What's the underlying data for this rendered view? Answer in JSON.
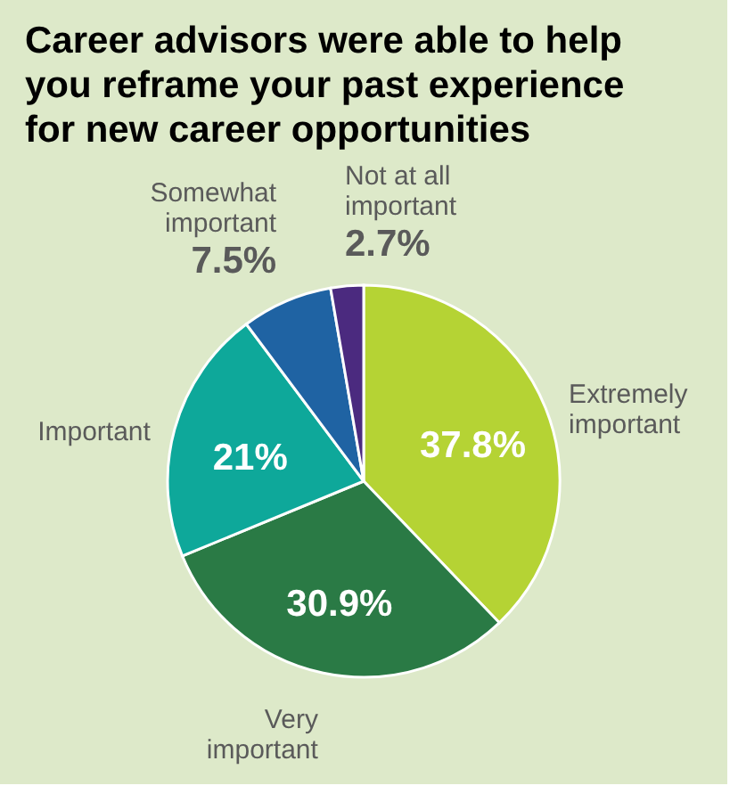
{
  "chart_data": {
    "type": "pie",
    "title": "Career advisors were able to help you reframe your past experience for new career opportunities",
    "categories": [
      "Extremely important",
      "Very important",
      "Important",
      "Somewhat important",
      "Not at all important"
    ],
    "values": [
      37.8,
      30.9,
      21,
      7.5,
      2.7
    ],
    "value_labels": [
      "37.8%",
      "30.9%",
      "21%",
      "7.5%",
      "2.7%"
    ],
    "colors": [
      "#b5d334",
      "#2a7a45",
      "#0ea89a",
      "#1f63a3",
      "#4b2a7f"
    ],
    "legend": false
  }
}
